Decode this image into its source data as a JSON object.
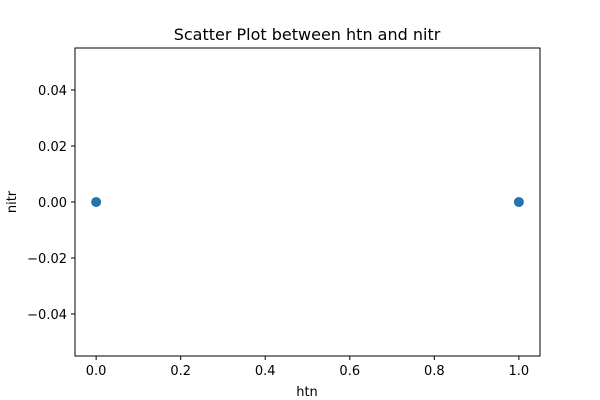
{
  "chart_data": {
    "type": "scatter",
    "title": "Scatter Plot between htn and nitr",
    "xlabel": "htn",
    "ylabel": "nitr",
    "xlim": [
      -0.05,
      1.05
    ],
    "ylim": [
      -0.055,
      0.055
    ],
    "xticks": [
      0.0,
      0.2,
      0.4,
      0.6,
      0.8,
      1.0
    ],
    "xtick_labels": [
      "0.0",
      "0.2",
      "0.4",
      "0.6",
      "0.8",
      "1.0"
    ],
    "yticks": [
      -0.04,
      -0.02,
      0.0,
      0.02,
      0.04
    ],
    "ytick_labels": [
      "−0.04",
      "−0.02",
      "0.00",
      "0.02",
      "0.04"
    ],
    "grid": false,
    "series": [
      {
        "color": "#1f77b4",
        "points": [
          {
            "x": 0.0,
            "y": 0.0
          },
          {
            "x": 1.0,
            "y": 0.0
          }
        ]
      }
    ]
  }
}
